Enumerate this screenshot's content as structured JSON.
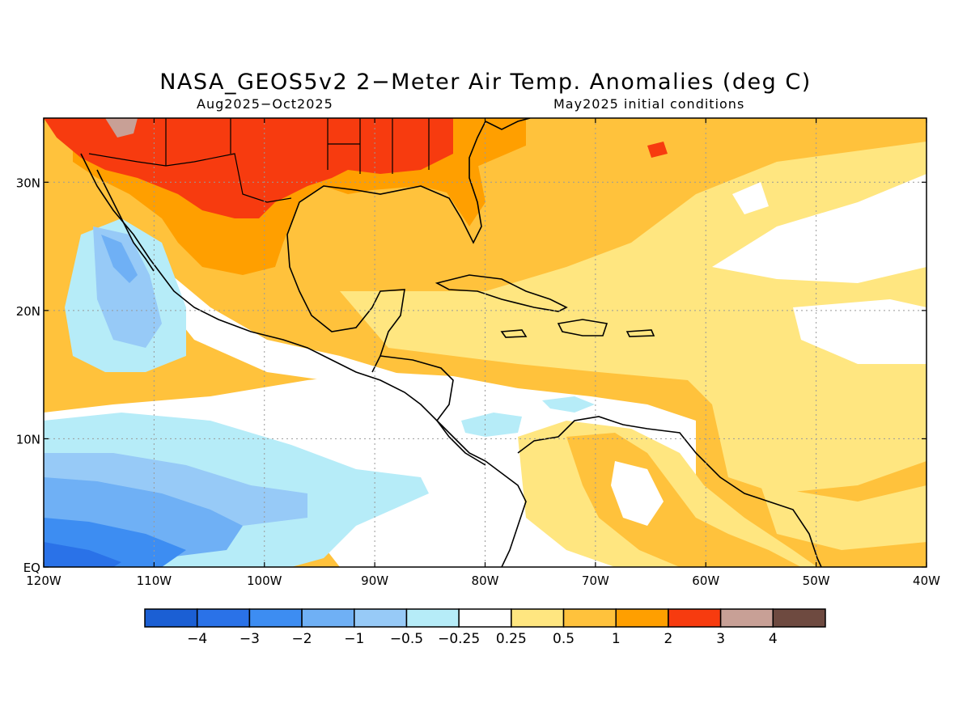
{
  "title": "NASA_GEOS5v2 2−Meter Air Temp. Anomalies (deg C)",
  "subtitle_left": "Aug2025−Oct2025",
  "subtitle_right": "May2025 initial conditions",
  "axes": {
    "x_ticks": [
      "120W",
      "110W",
      "100W",
      "90W",
      "80W",
      "70W",
      "60W",
      "50W",
      "40W"
    ],
    "y_ticks": [
      "EQ",
      "10N",
      "20N",
      "30N"
    ],
    "lon_range": [
      -120,
      -40
    ],
    "lat_range": [
      0,
      35
    ],
    "grid": "dotted"
  },
  "colorbar": {
    "labels": [
      "−4",
      "−3",
      "−2",
      "−1",
      "−0.5",
      "−0.25",
      "0.25",
      "0.5",
      "1",
      "2",
      "3",
      "4"
    ],
    "colors": [
      "#1b5fd4",
      "#2a72e8",
      "#3d8df2",
      "#6fb0f5",
      "#97caf7",
      "#b6ecf8",
      "#ffffff",
      "#ffe680",
      "#ffc23c",
      "#ff9f00",
      "#f73b0f",
      "#c8a096",
      "#6e4a40"
    ]
  },
  "map": {
    "region": "Gulf of Mexico, Caribbean and Eastern Pacific",
    "coastline_color": "#000000"
  }
}
